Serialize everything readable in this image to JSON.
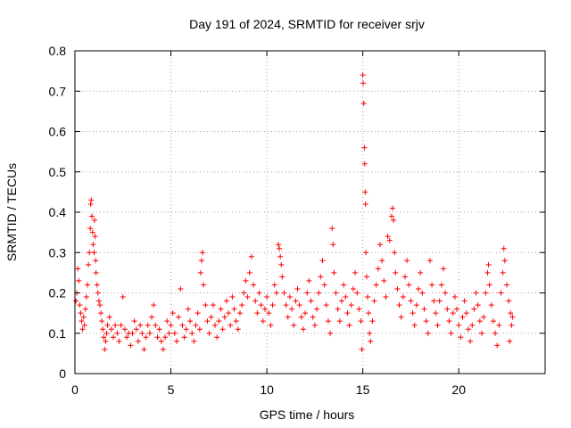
{
  "chart_data": {
    "type": "scatter",
    "title": "Day 191 of 2024, SRMTID for receiver srjv",
    "xlabel": "GPS time / hours",
    "ylabel": "SRMTID / TECUs",
    "xlim": [
      0,
      24.5
    ],
    "ylim": [
      0,
      0.8
    ],
    "xticks": [
      0,
      5,
      10,
      15,
      20
    ],
    "yticks": [
      0,
      0.1,
      0.2,
      0.3,
      0.4,
      0.5,
      0.6,
      0.7,
      0.8
    ],
    "xtick_labels": [
      "0",
      "5",
      "10",
      "15",
      "20"
    ],
    "ytick_labels": [
      "0",
      "0.1",
      "0.2",
      "0.3",
      "0.4",
      "0.5",
      "0.6",
      "0.7",
      "0.8"
    ],
    "grid": true,
    "marker": "plus",
    "color": "#ff0000",
    "x_end": 22.8,
    "series": [
      {
        "name": "srjv",
        "points": [
          [
            0.05,
            0.18
          ],
          [
            0.1,
            0.2
          ],
          [
            0.15,
            0.26
          ],
          [
            0.2,
            0.23
          ],
          [
            0.25,
            0.17
          ],
          [
            0.3,
            0.15
          ],
          [
            0.35,
            0.13
          ],
          [
            0.4,
            0.11
          ],
          [
            0.45,
            0.14
          ],
          [
            0.5,
            0.12
          ],
          [
            0.55,
            0.16
          ],
          [
            0.6,
            0.19
          ],
          [
            0.65,
            0.22
          ],
          [
            0.7,
            0.27
          ],
          [
            0.75,
            0.3
          ],
          [
            0.8,
            0.36
          ],
          [
            0.82,
            0.42
          ],
          [
            0.85,
            0.43
          ],
          [
            0.88,
            0.39
          ],
          [
            0.92,
            0.35
          ],
          [
            0.95,
            0.32
          ],
          [
            1.0,
            0.3
          ],
          [
            1.02,
            0.38
          ],
          [
            1.05,
            0.34
          ],
          [
            1.08,
            0.28
          ],
          [
            1.1,
            0.25
          ],
          [
            1.15,
            0.22
          ],
          [
            1.2,
            0.2
          ],
          [
            1.25,
            0.18
          ],
          [
            1.3,
            0.17
          ],
          [
            1.35,
            0.15
          ],
          [
            1.4,
            0.13
          ],
          [
            1.45,
            0.11
          ],
          [
            1.5,
            0.09
          ],
          [
            1.55,
            0.06
          ],
          [
            1.6,
            0.08
          ],
          [
            1.65,
            0.1
          ],
          [
            1.7,
            0.12
          ],
          [
            1.8,
            0.14
          ],
          [
            1.9,
            0.11
          ],
          [
            2.0,
            0.09
          ],
          [
            2.1,
            0.12
          ],
          [
            2.2,
            0.1
          ],
          [
            2.3,
            0.08
          ],
          [
            2.4,
            0.12
          ],
          [
            2.5,
            0.19
          ],
          [
            2.6,
            0.11
          ],
          [
            2.7,
            0.09
          ],
          [
            2.8,
            0.1
          ],
          [
            2.9,
            0.07
          ],
          [
            3.0,
            0.1
          ],
          [
            3.1,
            0.13
          ],
          [
            3.2,
            0.11
          ],
          [
            3.3,
            0.08
          ],
          [
            3.4,
            0.12
          ],
          [
            3.5,
            0.1
          ],
          [
            3.6,
            0.06
          ],
          [
            3.7,
            0.09
          ],
          [
            3.8,
            0.12
          ],
          [
            3.9,
            0.1
          ],
          [
            4.0,
            0.14
          ],
          [
            4.1,
            0.17
          ],
          [
            4.2,
            0.12
          ],
          [
            4.3,
            0.09
          ],
          [
            4.4,
            0.11
          ],
          [
            4.5,
            0.08
          ],
          [
            4.6,
            0.06
          ],
          [
            4.7,
            0.09
          ],
          [
            4.8,
            0.13
          ],
          [
            4.9,
            0.1
          ],
          [
            5.0,
            0.12
          ],
          [
            5.1,
            0.15
          ],
          [
            5.2,
            0.1
          ],
          [
            5.3,
            0.08
          ],
          [
            5.4,
            0.14
          ],
          [
            5.5,
            0.21
          ],
          [
            5.6,
            0.12
          ],
          [
            5.7,
            0.09
          ],
          [
            5.8,
            0.11
          ],
          [
            5.9,
            0.16
          ],
          [
            6.0,
            0.13
          ],
          [
            6.1,
            0.1
          ],
          [
            6.2,
            0.08
          ],
          [
            6.3,
            0.12
          ],
          [
            6.4,
            0.15
          ],
          [
            6.5,
            0.11
          ],
          [
            6.55,
            0.25
          ],
          [
            6.6,
            0.28
          ],
          [
            6.65,
            0.3
          ],
          [
            6.7,
            0.22
          ],
          [
            6.8,
            0.17
          ],
          [
            6.9,
            0.13
          ],
          [
            7.0,
            0.1
          ],
          [
            7.1,
            0.14
          ],
          [
            7.2,
            0.17
          ],
          [
            7.3,
            0.12
          ],
          [
            7.4,
            0.09
          ],
          [
            7.5,
            0.13
          ],
          [
            7.6,
            0.16
          ],
          [
            7.7,
            0.11
          ],
          [
            7.8,
            0.14
          ],
          [
            7.9,
            0.18
          ],
          [
            8.0,
            0.15
          ],
          [
            8.1,
            0.12
          ],
          [
            8.2,
            0.19
          ],
          [
            8.3,
            0.16
          ],
          [
            8.4,
            0.13
          ],
          [
            8.5,
            0.11
          ],
          [
            8.6,
            0.15
          ],
          [
            8.7,
            0.17
          ],
          [
            8.8,
            0.2
          ],
          [
            8.9,
            0.23
          ],
          [
            9.0,
            0.19
          ],
          [
            9.1,
            0.25
          ],
          [
            9.2,
            0.29
          ],
          [
            9.3,
            0.22
          ],
          [
            9.4,
            0.18
          ],
          [
            9.5,
            0.15
          ],
          [
            9.6,
            0.2
          ],
          [
            9.7,
            0.17
          ],
          [
            9.8,
            0.13
          ],
          [
            9.9,
            0.16
          ],
          [
            10.0,
            0.19
          ],
          [
            10.1,
            0.15
          ],
          [
            10.2,
            0.12
          ],
          [
            10.3,
            0.17
          ],
          [
            10.4,
            0.22
          ],
          [
            10.5,
            0.2
          ],
          [
            10.6,
            0.32
          ],
          [
            10.65,
            0.31
          ],
          [
            10.7,
            0.29
          ],
          [
            10.75,
            0.27
          ],
          [
            10.8,
            0.24
          ],
          [
            10.9,
            0.2
          ],
          [
            11.0,
            0.17
          ],
          [
            11.1,
            0.14
          ],
          [
            11.2,
            0.19
          ],
          [
            11.3,
            0.16
          ],
          [
            11.4,
            0.12
          ],
          [
            11.5,
            0.18
          ],
          [
            11.6,
            0.21
          ],
          [
            11.7,
            0.17
          ],
          [
            11.8,
            0.14
          ],
          [
            11.9,
            0.11
          ],
          [
            12.0,
            0.15
          ],
          [
            12.1,
            0.2
          ],
          [
            12.2,
            0.23
          ],
          [
            12.3,
            0.18
          ],
          [
            12.4,
            0.14
          ],
          [
            12.5,
            0.12
          ],
          [
            12.6,
            0.16
          ],
          [
            12.7,
            0.2
          ],
          [
            12.8,
            0.24
          ],
          [
            12.9,
            0.28
          ],
          [
            13.0,
            0.22
          ],
          [
            13.1,
            0.17
          ],
          [
            13.2,
            0.13
          ],
          [
            13.3,
            0.1
          ],
          [
            13.4,
            0.36
          ],
          [
            13.45,
            0.32
          ],
          [
            13.5,
            0.25
          ],
          [
            13.6,
            0.2
          ],
          [
            13.7,
            0.16
          ],
          [
            13.8,
            0.13
          ],
          [
            13.9,
            0.18
          ],
          [
            14.0,
            0.22
          ],
          [
            14.1,
            0.19
          ],
          [
            14.2,
            0.15
          ],
          [
            14.3,
            0.12
          ],
          [
            14.4,
            0.17
          ],
          [
            14.5,
            0.21
          ],
          [
            14.6,
            0.25
          ],
          [
            14.7,
            0.2
          ],
          [
            14.8,
            0.16
          ],
          [
            14.9,
            0.13
          ],
          [
            14.95,
            0.06
          ],
          [
            15.0,
            0.74
          ],
          [
            15.02,
            0.72
          ],
          [
            15.05,
            0.67
          ],
          [
            15.08,
            0.56
          ],
          [
            15.1,
            0.52
          ],
          [
            15.12,
            0.45
          ],
          [
            15.14,
            0.42
          ],
          [
            15.16,
            0.3
          ],
          [
            15.2,
            0.24
          ],
          [
            15.25,
            0.19
          ],
          [
            15.3,
            0.15
          ],
          [
            15.35,
            0.1
          ],
          [
            15.4,
            0.08
          ],
          [
            15.5,
            0.13
          ],
          [
            15.6,
            0.18
          ],
          [
            15.7,
            0.22
          ],
          [
            15.8,
            0.26
          ],
          [
            15.9,
            0.32
          ],
          [
            16.0,
            0.28
          ],
          [
            16.1,
            0.23
          ],
          [
            16.2,
            0.19
          ],
          [
            16.3,
            0.34
          ],
          [
            16.4,
            0.33
          ],
          [
            16.5,
            0.39
          ],
          [
            16.55,
            0.41
          ],
          [
            16.6,
            0.38
          ],
          [
            16.65,
            0.3
          ],
          [
            16.7,
            0.25
          ],
          [
            16.8,
            0.21
          ],
          [
            16.9,
            0.17
          ],
          [
            17.0,
            0.14
          ],
          [
            17.1,
            0.19
          ],
          [
            17.2,
            0.24
          ],
          [
            17.3,
            0.28
          ],
          [
            17.4,
            0.22
          ],
          [
            17.5,
            0.18
          ],
          [
            17.6,
            0.15
          ],
          [
            17.7,
            0.12
          ],
          [
            17.8,
            0.17
          ],
          [
            17.9,
            0.21
          ],
          [
            18.0,
            0.25
          ],
          [
            18.1,
            0.2
          ],
          [
            18.2,
            0.16
          ],
          [
            18.3,
            0.13
          ],
          [
            18.4,
            0.1
          ],
          [
            18.5,
            0.28
          ],
          [
            18.6,
            0.22
          ],
          [
            18.7,
            0.18
          ],
          [
            18.8,
            0.15
          ],
          [
            18.9,
            0.12
          ],
          [
            19.0,
            0.18
          ],
          [
            19.1,
            0.22
          ],
          [
            19.2,
            0.26
          ],
          [
            19.3,
            0.2
          ],
          [
            19.4,
            0.16
          ],
          [
            19.5,
            0.13
          ],
          [
            19.6,
            0.1
          ],
          [
            19.7,
            0.15
          ],
          [
            19.8,
            0.19
          ],
          [
            19.9,
            0.16
          ],
          [
            20.0,
            0.12
          ],
          [
            20.1,
            0.09
          ],
          [
            20.2,
            0.14
          ],
          [
            20.3,
            0.18
          ],
          [
            20.4,
            0.15
          ],
          [
            20.5,
            0.11
          ],
          [
            20.6,
            0.08
          ],
          [
            20.7,
            0.12
          ],
          [
            20.8,
            0.16
          ],
          [
            20.9,
            0.2
          ],
          [
            21.0,
            0.17
          ],
          [
            21.1,
            0.13
          ],
          [
            21.2,
            0.1
          ],
          [
            21.3,
            0.14
          ],
          [
            21.4,
            0.2
          ],
          [
            21.5,
            0.25
          ],
          [
            21.55,
            0.27
          ],
          [
            21.6,
            0.22
          ],
          [
            21.7,
            0.17
          ],
          [
            21.8,
            0.13
          ],
          [
            21.9,
            0.1
          ],
          [
            22.0,
            0.07
          ],
          [
            22.1,
            0.12
          ],
          [
            22.2,
            0.2
          ],
          [
            22.3,
            0.25
          ],
          [
            22.35,
            0.31
          ],
          [
            22.4,
            0.28
          ],
          [
            22.5,
            0.22
          ],
          [
            22.6,
            0.18
          ],
          [
            22.65,
            0.08
          ],
          [
            22.7,
            0.15
          ],
          [
            22.75,
            0.12
          ],
          [
            22.8,
            0.14
          ]
        ]
      }
    ]
  }
}
